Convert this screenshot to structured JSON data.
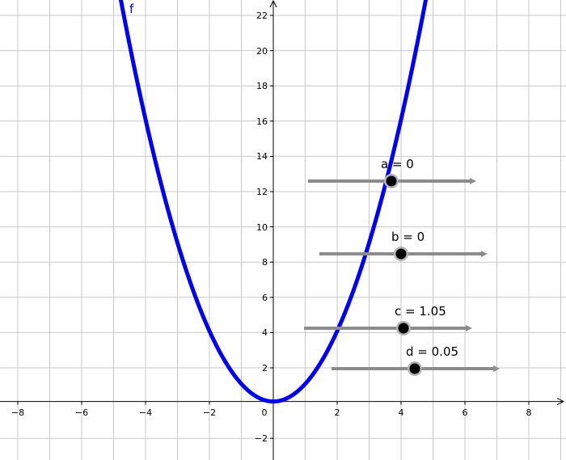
{
  "graph": {
    "function_label": "f",
    "function_color": "#0000ff",
    "x_ticks": [
      "−8",
      "−6",
      "−4",
      "−2",
      "0",
      "2",
      "4",
      "6",
      "8"
    ],
    "y_ticks": [
      "−2",
      "2",
      "4",
      "6",
      "8",
      "10",
      "12",
      "14",
      "16",
      "18",
      "20",
      "22"
    ],
    "x_range": [
      -8.4,
      9.1
    ],
    "y_range": [
      -3.4,
      22.8
    ],
    "grid": true
  },
  "sliders": [
    {
      "label": "a = 0"
    },
    {
      "label": "b = 0"
    },
    {
      "label": "c = 1.05"
    },
    {
      "label": "d = 0.05"
    }
  ]
}
